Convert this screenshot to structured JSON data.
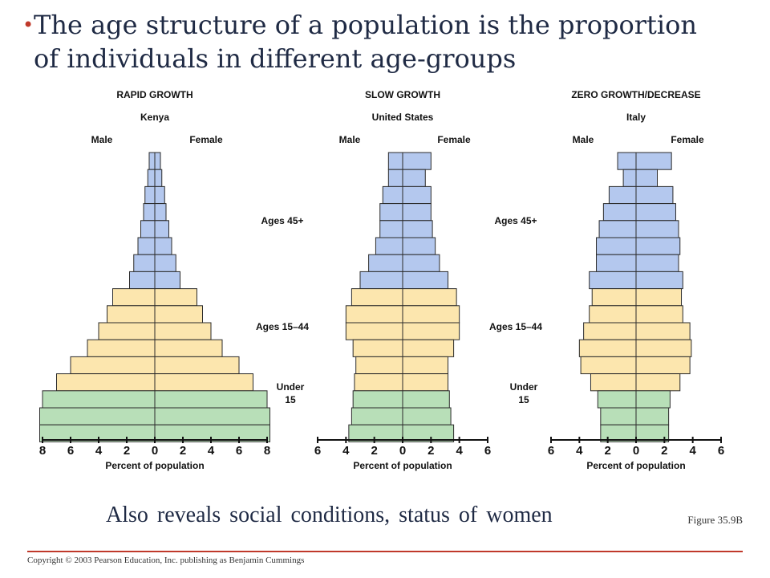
{
  "title": {
    "bullet": "•",
    "line1": "The age structure of a population is the proportion",
    "line2": "of individuals in different age-groups"
  },
  "subtitle": "Also reveals social conditions, status of women",
  "figure_ref": "Figure 35.9B",
  "copyright": "Copyright © 2003 Pearson Education, Inc. publishing as Benjamin Cummings",
  "colors": {
    "ages_45_plus": "#b4c8ee",
    "ages_15_44": "#fce6ae",
    "under_15": "#b8dfb8",
    "bar_stroke": "#2b2b2b",
    "accent": "#c0392b"
  },
  "chart_data": [
    {
      "type": "bar",
      "orientation": "population-pyramid",
      "title": "RAPID GROWTH",
      "subtitle": "Kenya",
      "left_label": "Male",
      "right_label": "Female",
      "xlabel": "Percent of population",
      "xlim": [
        -8,
        8
      ],
      "x_ticks": [
        "8",
        "6",
        "4",
        "2",
        "0",
        "2",
        "4",
        "6",
        "8"
      ],
      "age_groups_top_to_bottom": [
        "45+",
        "45+",
        "45+",
        "45+",
        "45+",
        "45+",
        "45+",
        "45+",
        "15-44",
        "15-44",
        "15-44",
        "15-44",
        "15-44",
        "15-44",
        "under-15",
        "under-15",
        "under-15"
      ],
      "series": [
        {
          "name": "Male",
          "values": [
            0.4,
            0.5,
            0.7,
            0.8,
            1.0,
            1.2,
            1.5,
            1.8,
            3.0,
            3.4,
            4.0,
            4.8,
            6.0,
            7.0,
            8.0,
            8.2,
            8.2
          ]
        },
        {
          "name": "Female",
          "values": [
            0.4,
            0.5,
            0.7,
            0.8,
            1.0,
            1.2,
            1.5,
            1.8,
            3.0,
            3.4,
            4.0,
            4.8,
            6.0,
            7.0,
            8.0,
            8.2,
            8.2
          ]
        }
      ]
    },
    {
      "type": "bar",
      "orientation": "population-pyramid",
      "title": "SLOW GROWTH",
      "subtitle": "United States",
      "left_label": "Male",
      "right_label": "Female",
      "xlabel": "Percent of population",
      "xlim": [
        -6,
        6
      ],
      "x_ticks": [
        "6",
        "4",
        "2",
        "0",
        "2",
        "4",
        "6"
      ],
      "age_groups_top_to_bottom": [
        "45+",
        "45+",
        "45+",
        "45+",
        "45+",
        "45+",
        "45+",
        "45+",
        "15-44",
        "15-44",
        "15-44",
        "15-44",
        "15-44",
        "15-44",
        "under-15",
        "under-15",
        "under-15"
      ],
      "series": [
        {
          "name": "Male",
          "values": [
            1.0,
            1.0,
            1.4,
            1.6,
            1.6,
            1.9,
            2.4,
            3.0,
            3.6,
            4.0,
            4.0,
            3.5,
            3.3,
            3.4,
            3.5,
            3.6,
            3.8
          ]
        },
        {
          "name": "Female",
          "values": [
            2.0,
            1.6,
            2.0,
            2.0,
            2.1,
            2.3,
            2.6,
            3.2,
            3.8,
            4.0,
            4.0,
            3.6,
            3.2,
            3.2,
            3.3,
            3.4,
            3.6
          ]
        }
      ],
      "annotations": [
        "Ages 45+",
        "Ages 15–44",
        "Under",
        "15"
      ]
    },
    {
      "type": "bar",
      "orientation": "population-pyramid",
      "title": "ZERO GROWTH/DECREASE",
      "subtitle": "Italy",
      "left_label": "Male",
      "right_label": "Female",
      "xlabel": "Percent of population",
      "xlim": [
        -6,
        6
      ],
      "x_ticks": [
        "6",
        "4",
        "2",
        "0",
        "2",
        "4",
        "6"
      ],
      "age_groups_top_to_bottom": [
        "45+",
        "45+",
        "45+",
        "45+",
        "45+",
        "45+",
        "45+",
        "45+",
        "15-44",
        "15-44",
        "15-44",
        "15-44",
        "15-44",
        "15-44",
        "under-15",
        "under-15",
        "under-15"
      ],
      "series": [
        {
          "name": "Male",
          "values": [
            1.3,
            0.9,
            1.9,
            2.3,
            2.6,
            2.8,
            2.8,
            3.3,
            3.1,
            3.3,
            3.7,
            4.0,
            3.9,
            3.2,
            2.7,
            2.5,
            2.5
          ]
        },
        {
          "name": "Female",
          "values": [
            2.5,
            1.5,
            2.6,
            2.8,
            3.0,
            3.1,
            3.0,
            3.3,
            3.2,
            3.3,
            3.8,
            3.9,
            3.8,
            3.1,
            2.4,
            2.3,
            2.3
          ]
        }
      ],
      "annotations": [
        "Ages 45+",
        "Ages 15–44",
        "Under",
        "15"
      ]
    }
  ]
}
